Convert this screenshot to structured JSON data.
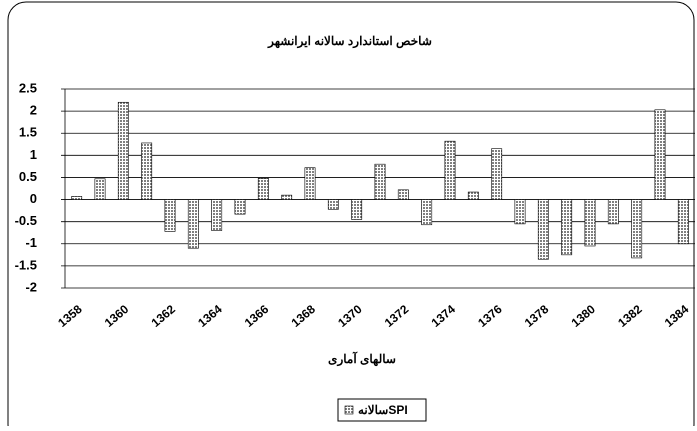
{
  "chart_data": {
    "type": "bar",
    "title": "شاخص استاندارد سالانه ایرانشهر",
    "x_label": "سالهای آماری",
    "categories": [
      "1358",
      null,
      "1360",
      null,
      "1362",
      null,
      "1364",
      null,
      "1366",
      null,
      "1368",
      null,
      "1370",
      null,
      "1372",
      null,
      "1374",
      null,
      "1376",
      null,
      "1378",
      null,
      "1380",
      null,
      "1382",
      null,
      "1384"
    ],
    "series": [
      {
        "name": "سالانهSPI",
        "color": "#808080",
        "values": [
          0.07,
          0.47,
          2.2,
          1.28,
          -0.72,
          -1.1,
          -0.7,
          -0.33,
          0.48,
          0.1,
          0.72,
          -0.22,
          -0.45,
          0.8,
          0.22,
          -0.57,
          1.32,
          0.17,
          1.15,
          -0.55,
          -1.35,
          -1.25,
          -1.05,
          -0.55,
          -1.32,
          2.03,
          -1.0
        ]
      }
    ],
    "ylim": [
      -2,
      2.5
    ],
    "yticks": [
      -2,
      -1.5,
      -1,
      -0.5,
      0,
      0.5,
      1,
      1.5,
      2,
      2.5
    ],
    "grid": true
  }
}
